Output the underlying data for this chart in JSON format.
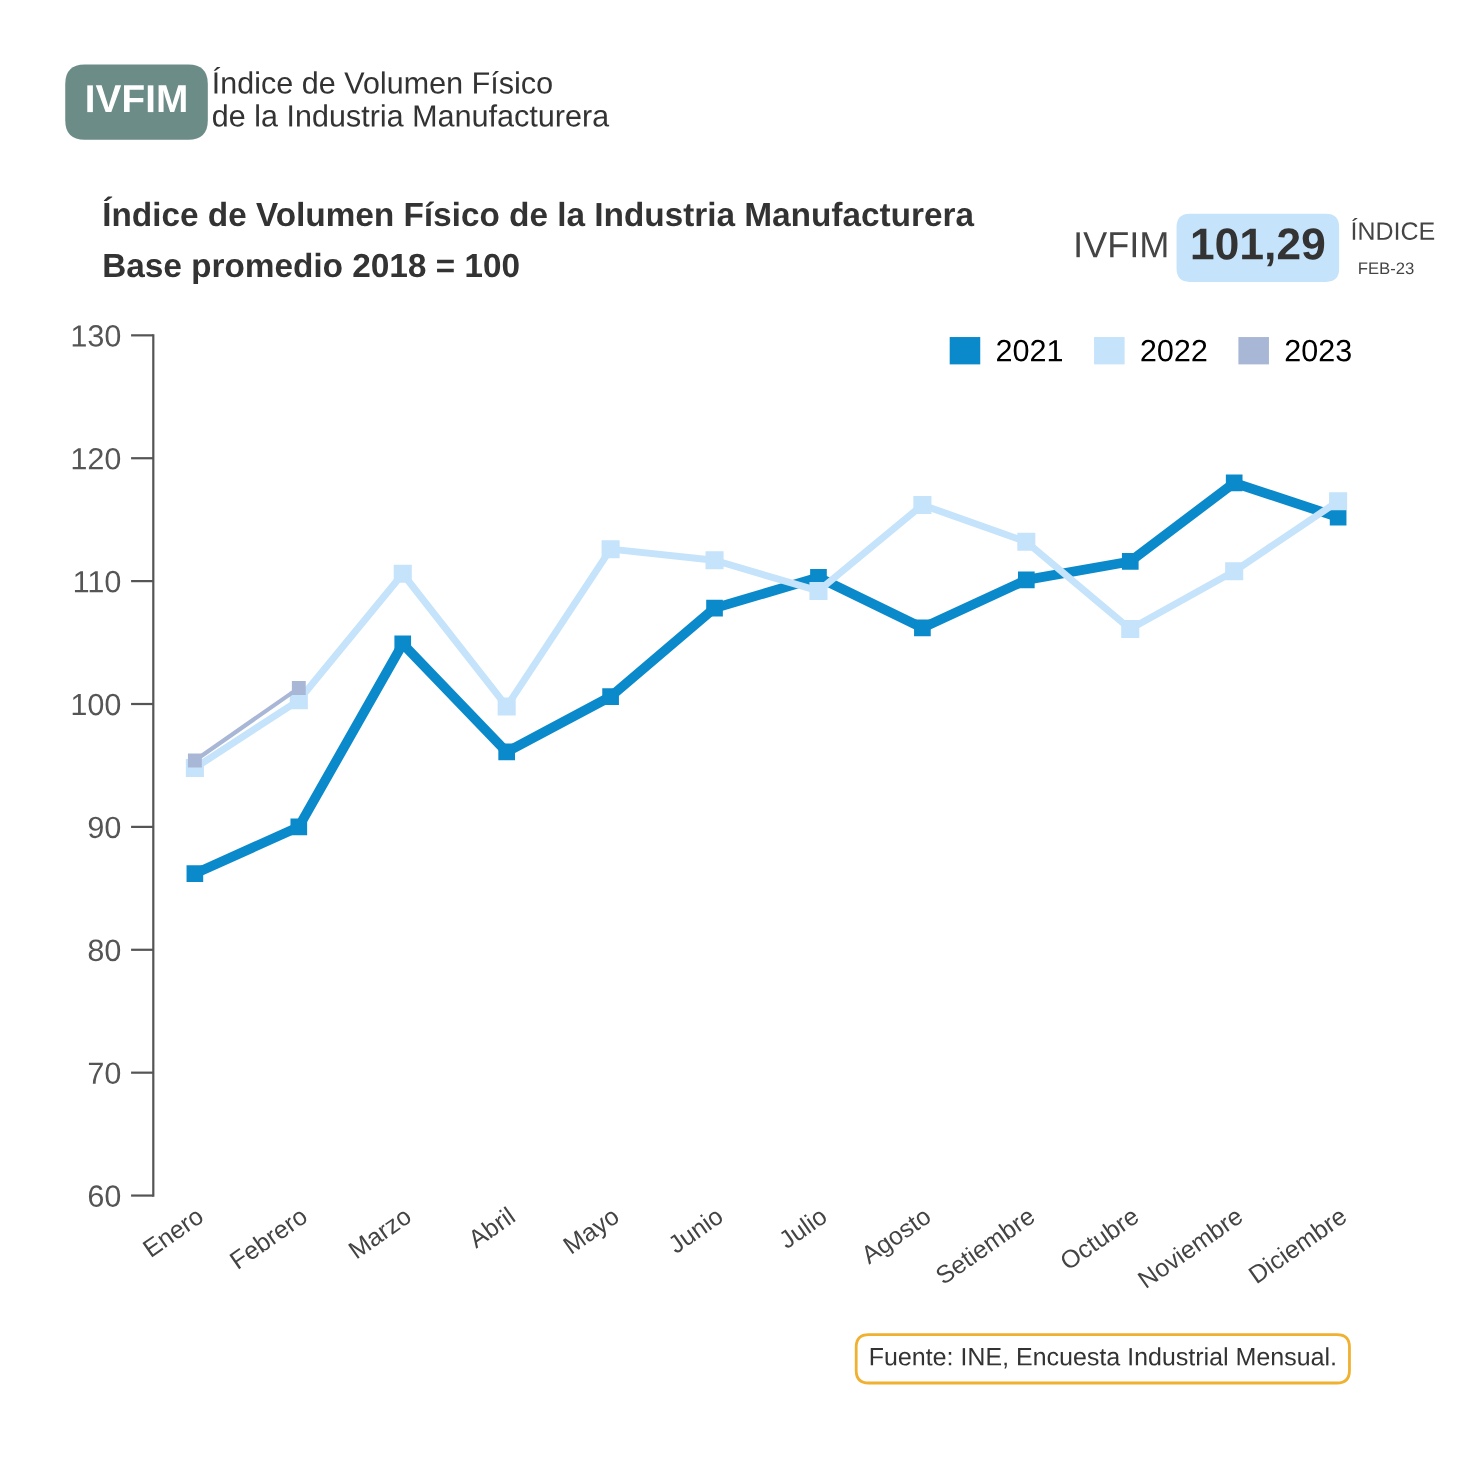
{
  "chart_data": {
    "type": "line",
    "title": "Índice de Volumen Físico de la Industria Manufacturera",
    "subtitle": "Base promedio 2018 = 100",
    "categories": [
      "Enero",
      "Febrero",
      "Marzo",
      "Abril",
      "Mayo",
      "Junio",
      "Julio",
      "Agosto",
      "Setiembre",
      "Octubre",
      "Noviembre",
      "Diciembre"
    ],
    "series": [
      {
        "name": "2021",
        "color": "#0a8acb",
        "values": [
          86.2,
          90.0,
          104.9,
          96.1,
          100.6,
          107.8,
          110.3,
          106.2,
          110.1,
          111.6,
          118.0,
          115.2
        ]
      },
      {
        "name": "2022",
        "color": "#c5e3fa",
        "values": [
          94.8,
          100.3,
          110.6,
          99.8,
          112.6,
          111.7,
          109.2,
          116.2,
          113.2,
          106.1,
          110.8,
          116.5
        ]
      },
      {
        "name": "2023",
        "color": "#a9b7d6",
        "values": [
          95.4,
          101.3,
          null,
          null,
          null,
          null,
          null,
          null,
          null,
          null,
          null,
          null
        ]
      }
    ],
    "ylim": [
      60,
      130
    ],
    "yticks": [
      60,
      70,
      80,
      90,
      100,
      110,
      120,
      130
    ],
    "grid": false,
    "legend": "top right",
    "marker": "square",
    "line_style": "solid",
    "annotations": [
      "IVFIM",
      "Índice de Volumen Físico\nde la Industria Manufacturera",
      "IVFIM",
      "101,29",
      "ÍNDICE",
      "FEB-23",
      "Fuente: INE, Encuesta Industrial Mensual."
    ]
  }
}
